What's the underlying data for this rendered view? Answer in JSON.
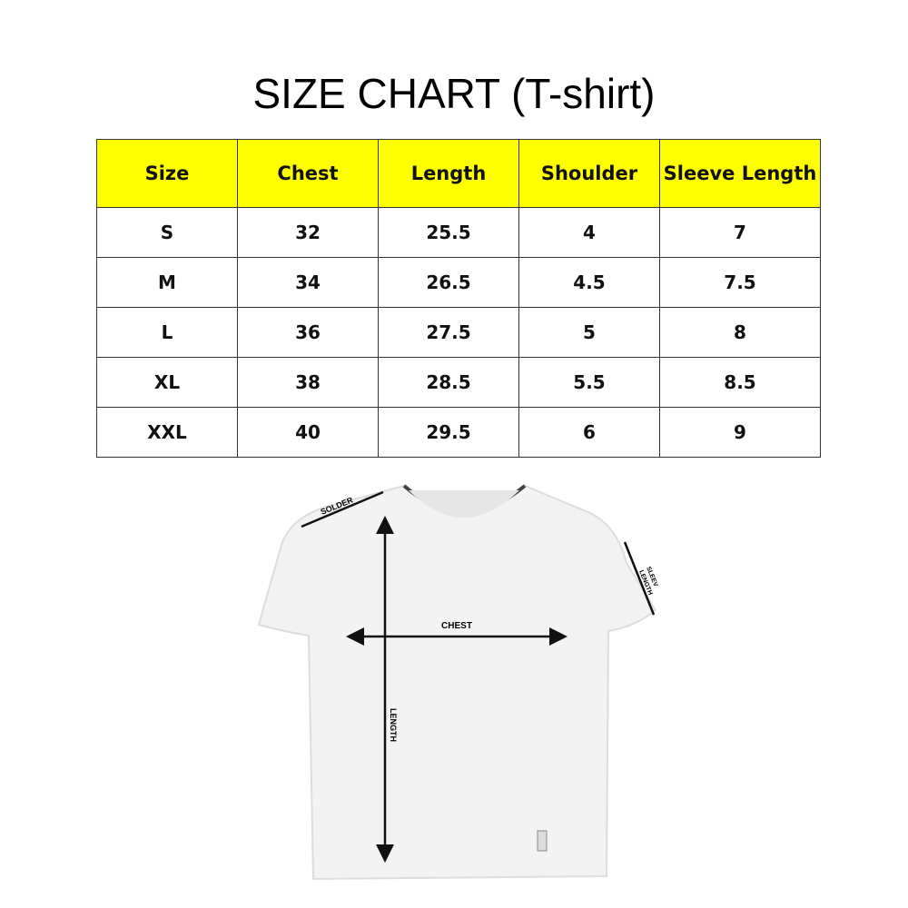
{
  "title": "SIZE CHART (T-shirt)",
  "chart_data": {
    "type": "table",
    "columns": [
      "Size",
      "Chest",
      "Length",
      "Shoulder",
      "Sleeve Length"
    ],
    "rows": [
      [
        "S",
        "32",
        "25.5",
        "4",
        "7"
      ],
      [
        "M",
        "34",
        "26.5",
        "4.5",
        "7.5"
      ],
      [
        "L",
        "36",
        "27.5",
        "5",
        "8"
      ],
      [
        "XL",
        "38",
        "28.5",
        "5.5",
        "8.5"
      ],
      [
        "XXL",
        "40",
        "29.5",
        "6",
        "9"
      ]
    ],
    "header_color": "#ffff00"
  },
  "diagram": {
    "labels": {
      "shoulder": "SOLDER",
      "sleeve_line1": "SLEEV",
      "sleeve_line2": "LENGTH",
      "chest": "CHEST",
      "length": "LENGTH"
    }
  }
}
